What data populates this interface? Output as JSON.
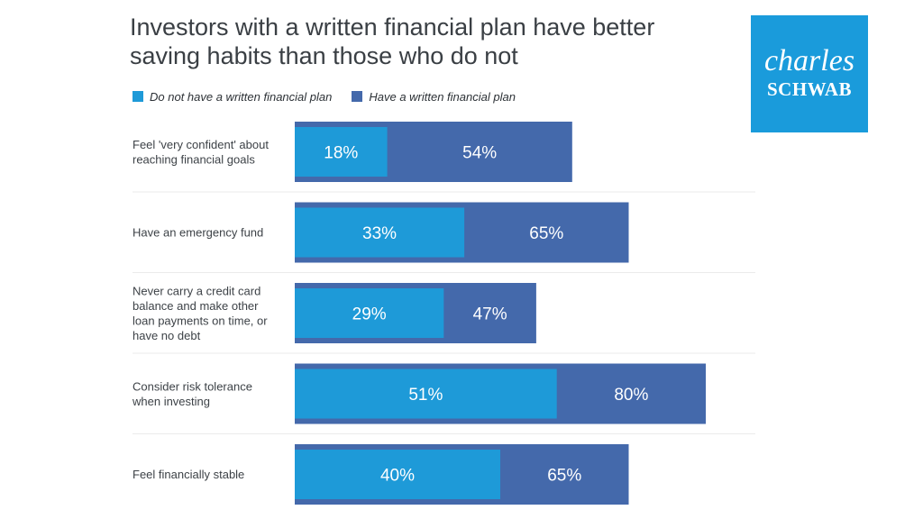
{
  "title_lines": [
    "Investors with a written financial plan have better",
    "saving habits than those who do not"
  ],
  "legend": {
    "no_plan": "Do not have a written financial plan",
    "plan": "Have a written financial plan"
  },
  "logo": {
    "line1": "charles",
    "line2": "SCHWAB"
  },
  "colors": {
    "no_plan": "#1e9ad8",
    "plan": "#4469ab",
    "separator": "#ebebeb",
    "logo_bg": "#1a9bdb"
  },
  "chart_data": {
    "type": "bar",
    "orientation": "horizontal",
    "title": "Investors with a written financial plan have better saving habits than those who do not",
    "categories": [
      [
        "Feel 'very confident' about",
        "reaching financial goals"
      ],
      [
        "Have an emergency fund"
      ],
      [
        "Never carry a credit card",
        "balance and make other",
        "loan payments on time, or",
        "have no debt"
      ],
      [
        "Consider risk tolerance",
        "when investing"
      ],
      [
        "Feel financially stable"
      ]
    ],
    "series": [
      {
        "name": "Do not have a written financial plan",
        "values": [
          18,
          33,
          29,
          51,
          40
        ]
      },
      {
        "name": "Have a written financial plan",
        "values": [
          54,
          65,
          47,
          80,
          65
        ]
      }
    ],
    "value_labels": [
      [
        "18%",
        "33%",
        "29%",
        "51%",
        "40%"
      ],
      [
        "54%",
        "65%",
        "47%",
        "80%",
        "65%"
      ]
    ],
    "overlay": true,
    "xlim": [
      0,
      100
    ],
    "legend_position": "top-left",
    "grid": false
  }
}
